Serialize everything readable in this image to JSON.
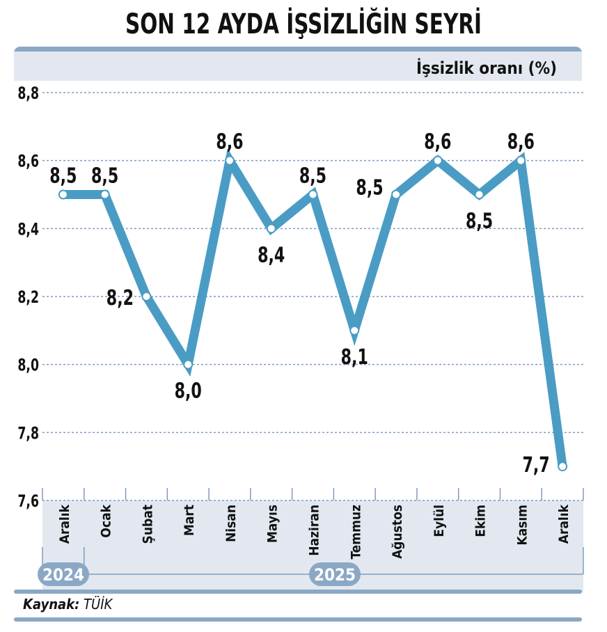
{
  "title": "SON 12 AYDA İŞSİZLİĞİN SEYRİ",
  "source_label": "Kaynak:",
  "source_value": "TÜİK",
  "colors": {
    "line": "#4a9cc4",
    "band": "#8aa8c4",
    "panel": "#e3e8f0",
    "grid": "#7f9cc0"
  },
  "chart_data": {
    "type": "line",
    "ylabel": "İşsizlik oranı (%)",
    "ylim": [
      7.6,
      8.8
    ],
    "yticks": [
      "7,6",
      "7,8",
      "8,0",
      "8,2",
      "8,4",
      "8,6",
      "8,8"
    ],
    "grid": true,
    "categories": [
      "Aralık",
      "Ocak",
      "Şubat",
      "Mart",
      "Nisan",
      "Mayıs",
      "Haziran",
      "Temmuz",
      "Ağustos",
      "Eylül",
      "Ekim",
      "Kasım",
      "Aralık"
    ],
    "values": [
      8.5,
      8.5,
      8.2,
      8.0,
      8.6,
      8.4,
      8.5,
      8.1,
      8.5,
      8.6,
      8.5,
      8.6,
      7.7
    ],
    "data_labels": [
      "8,5",
      "8,5",
      "8,2",
      "8,0",
      "8,6",
      "8,4",
      "8,5",
      "8,1",
      "8,5",
      "8,6",
      "8,5",
      "8,6",
      "7,7"
    ],
    "year_labels": [
      "2024",
      "2025"
    ]
  }
}
